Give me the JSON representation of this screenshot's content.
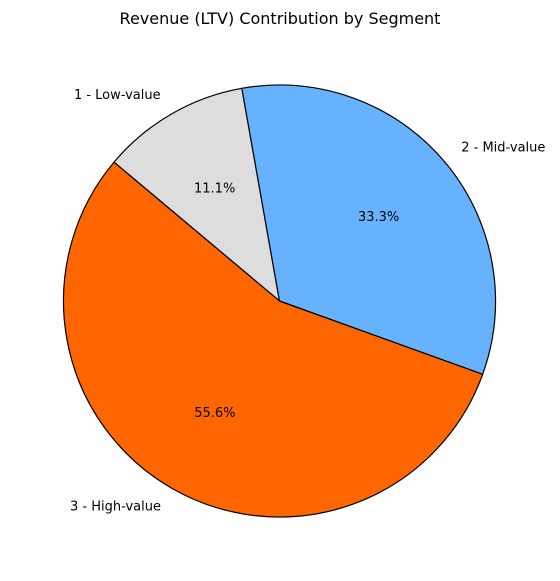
{
  "chart_data": {
    "type": "pie",
    "title": "Revenue (LTV) Contribution by Segment",
    "slices": [
      {
        "label": "1 - Low-value",
        "value": 11.1,
        "pct_label": "11.1%",
        "color": "#dddddd"
      },
      {
        "label": "2 - Mid-value",
        "value": 33.3,
        "pct_label": "33.3%",
        "color": "#66b2ff"
      },
      {
        "label": "3 - High-value",
        "value": 55.6,
        "pct_label": "55.6%",
        "color": "#ff6600"
      }
    ],
    "start_angle_deg": 140,
    "direction": "clockwise",
    "edge_color": "#000000"
  }
}
